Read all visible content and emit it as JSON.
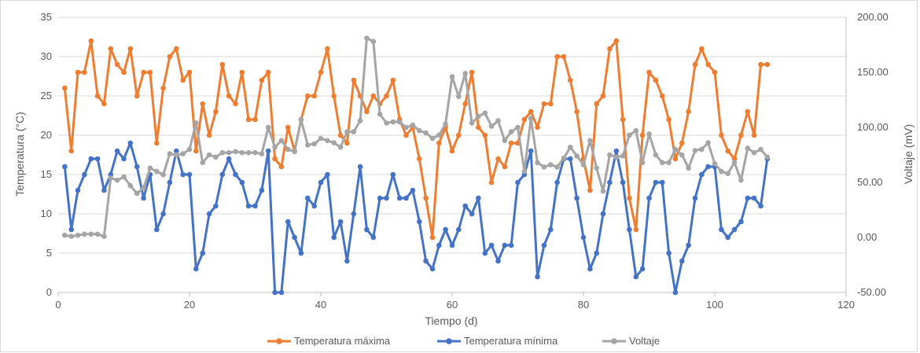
{
  "chart_data": {
    "type": "line",
    "xlabel": "Tiempo (d)",
    "ylabel": "Temperatura (°C)",
    "y2label": "Voltaje (mV)",
    "xlim": [
      0,
      120
    ],
    "ylim": [
      0,
      35
    ],
    "y2lim": [
      -50,
      200
    ],
    "xticks": [
      0,
      20,
      40,
      60,
      80,
      100,
      120
    ],
    "yticks": [
      0,
      5,
      10,
      15,
      20,
      25,
      30,
      35
    ],
    "y2ticks": [
      "-50.00",
      "0.00",
      "50.00",
      "100.00",
      "150.00",
      "200.00"
    ],
    "y2tick_values": [
      -50,
      0,
      50,
      100,
      150,
      200
    ],
    "grid": "horizontal",
    "legend_position": "bottom",
    "x": [
      1,
      2,
      3,
      4,
      5,
      6,
      7,
      8,
      9,
      10,
      11,
      12,
      13,
      14,
      15,
      16,
      17,
      18,
      19,
      20,
      21,
      22,
      23,
      24,
      25,
      26,
      27,
      28,
      29,
      30,
      31,
      32,
      33,
      34,
      35,
      36,
      37,
      38,
      39,
      40,
      41,
      42,
      43,
      44,
      45,
      46,
      47,
      48,
      49,
      50,
      51,
      52,
      53,
      54,
      55,
      56,
      57,
      58,
      59,
      60,
      61,
      62,
      63,
      64,
      65,
      66,
      67,
      68,
      69,
      70,
      71,
      72,
      73,
      74,
      75,
      76,
      77,
      78,
      79,
      80,
      81,
      82,
      83,
      84,
      85,
      86,
      87,
      88,
      89,
      90,
      91,
      92,
      93,
      94,
      95,
      96,
      97,
      98,
      99,
      100,
      101,
      102,
      103,
      104,
      105,
      106,
      107,
      108
    ],
    "series": [
      {
        "name": "Temperatura máxima",
        "axis": "left",
        "color": "#ED7D31",
        "values": [
          26,
          18,
          28,
          28,
          32,
          25,
          24,
          31,
          29,
          28,
          31,
          25,
          28,
          28,
          19,
          26,
          30,
          31,
          27,
          28,
          18,
          24,
          20,
          23,
          29,
          25,
          24,
          28,
          22,
          22,
          27,
          28,
          17,
          16,
          21,
          18,
          22,
          25,
          25,
          28,
          31,
          25,
          20,
          19,
          27,
          25,
          23,
          25,
          24,
          25,
          27,
          22,
          20,
          21,
          17,
          12,
          7,
          19,
          21,
          18,
          20,
          24,
          28,
          21,
          20,
          14,
          17,
          16,
          19,
          19,
          22,
          23,
          21,
          24,
          24,
          30,
          30,
          27,
          23,
          17,
          13,
          24,
          25,
          31,
          32,
          22,
          12,
          8,
          20,
          28,
          27,
          25,
          22,
          17,
          19,
          23,
          29,
          31,
          29,
          28,
          20,
          18,
          17,
          20,
          23,
          20,
          29,
          29
        ]
      },
      {
        "name": "Temperatura mínima",
        "axis": "left",
        "color": "#4472C4",
        "values": [
          16,
          8,
          13,
          15,
          17,
          17,
          13,
          15,
          18,
          17,
          19,
          16,
          12,
          15,
          8,
          10,
          14,
          18,
          15,
          15,
          3,
          5,
          10,
          11,
          15,
          17,
          15,
          14,
          11,
          11,
          13,
          18,
          0,
          0,
          9,
          7,
          5,
          12,
          11,
          14,
          15,
          7,
          9,
          4,
          10,
          16,
          8,
          7,
          12,
          12,
          15,
          12,
          12,
          13,
          9,
          4,
          3,
          6,
          8,
          6,
          8,
          11,
          10,
          12,
          5,
          6,
          4,
          6,
          6,
          14,
          15,
          18,
          2,
          6,
          8,
          14,
          17,
          17,
          12,
          7,
          3,
          5,
          10,
          14,
          18,
          14,
          8,
          2,
          3,
          12,
          14,
          14,
          5,
          0,
          4,
          6,
          12,
          15,
          16,
          16,
          8,
          7,
          8,
          9,
          12,
          12,
          11,
          17
        ]
      },
      {
        "name": "Voltaje",
        "axis": "right",
        "color": "#A5A5A5",
        "values": [
          2,
          1,
          2,
          3,
          3,
          3,
          1,
          54,
          52,
          55,
          47,
          40,
          45,
          63,
          60,
          57,
          76,
          75,
          76,
          80,
          104,
          68,
          75,
          73,
          77,
          77,
          78,
          77,
          77,
          77,
          76,
          100,
          82,
          88,
          80,
          78,
          107,
          84,
          85,
          90,
          88,
          86,
          82,
          96,
          96,
          106,
          181,
          178,
          112,
          104,
          105,
          105,
          100,
          102,
          97,
          95,
          90,
          93,
          103,
          146,
          128,
          149,
          104,
          110,
          113,
          101,
          106,
          88,
          96,
          100,
          60,
          108,
          68,
          64,
          66,
          64,
          72,
          82,
          74,
          66,
          88,
          63,
          42,
          75,
          73,
          74,
          93,
          97,
          68,
          94,
          75,
          68,
          68,
          80,
          75,
          63,
          79,
          80,
          86,
          67,
          60,
          58,
          68,
          52,
          81,
          77,
          80,
          73
        ]
      }
    ]
  }
}
